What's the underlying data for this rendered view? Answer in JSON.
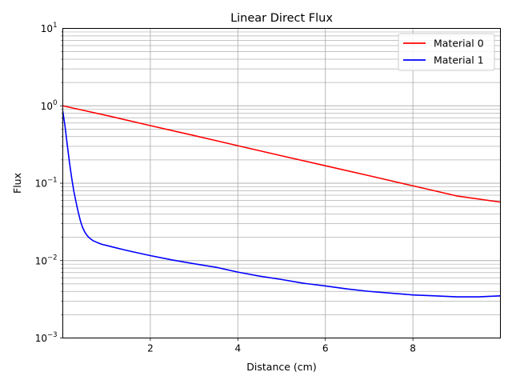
{
  "chart_data": {
    "type": "line",
    "title": "Linear Direct Flux",
    "xlabel": "Distance (cm)",
    "ylabel": "Flux",
    "xlim": [
      0,
      10
    ],
    "ylim": [
      0.001,
      10
    ],
    "yscale": "log",
    "grid": true,
    "legend_position": "top-right",
    "x_ticks": [
      2,
      4,
      6,
      8
    ],
    "y_ticks": [
      {
        "value": 0.001,
        "base": "10",
        "exp": "−3"
      },
      {
        "value": 0.01,
        "base": "10",
        "exp": "−2"
      },
      {
        "value": 0.1,
        "base": "10",
        "exp": "−1"
      },
      {
        "value": 1,
        "base": "10",
        "exp": "0"
      },
      {
        "value": 10,
        "base": "10",
        "exp": "1"
      }
    ],
    "series": [
      {
        "name": "Material 0",
        "color": "#ff0000",
        "x": [
          0,
          1,
          2,
          3,
          4,
          5,
          6,
          7,
          8,
          9,
          10
        ],
        "y": [
          1.0,
          0.75,
          0.555,
          0.413,
          0.305,
          0.226,
          0.168,
          0.125,
          0.0925,
          0.0685,
          0.057
        ]
      },
      {
        "name": "Material 1",
        "color": "#0000ff",
        "x": [
          0,
          0.05,
          0.1,
          0.15,
          0.2,
          0.25,
          0.3,
          0.35,
          0.4,
          0.45,
          0.5,
          0.55,
          0.6,
          0.65,
          0.7,
          0.8,
          0.9,
          1.0,
          1.2,
          1.4,
          1.6,
          2.0,
          2.5,
          3.0,
          3.5,
          4.0,
          4.5,
          5.0,
          5.5,
          6.0,
          6.5,
          7.0,
          7.5,
          8.0,
          8.5,
          9.0,
          9.5,
          10.0
        ],
        "y": [
          0.85,
          0.55,
          0.32,
          0.19,
          0.12,
          0.08,
          0.058,
          0.043,
          0.033,
          0.027,
          0.0235,
          0.0213,
          0.0198,
          0.0188,
          0.018,
          0.017,
          0.0162,
          0.0157,
          0.0147,
          0.0138,
          0.013,
          0.0116,
          0.0102,
          0.0091,
          0.0082,
          0.0071,
          0.0063,
          0.0057,
          0.0051,
          0.0047,
          0.0043,
          0.004,
          0.0038,
          0.0036,
          0.0035,
          0.0034,
          0.0034,
          0.0035
        ]
      }
    ]
  }
}
